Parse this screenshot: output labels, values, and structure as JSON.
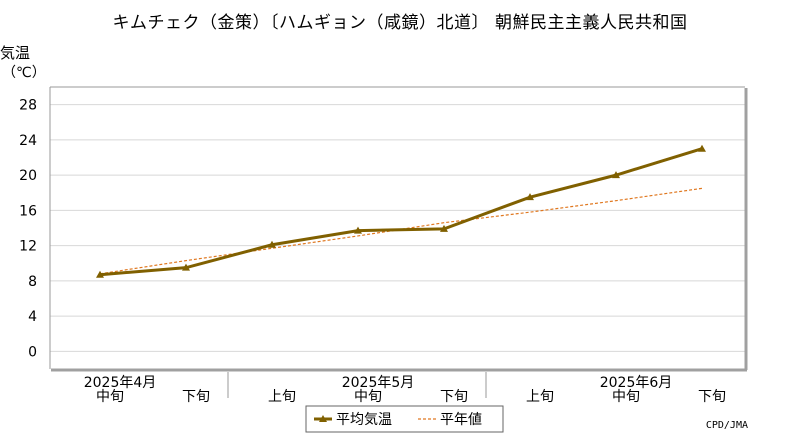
{
  "chart_data": {
    "type": "line",
    "title": "キムチェク（金策）〔ハムギョン（咸鏡）北道〕 朝鮮民主主義人民共和国",
    "ylabel": [
      "気温",
      "（℃）"
    ],
    "ylim": [
      -2,
      30
    ],
    "yticks": [
      0,
      4,
      8,
      12,
      16,
      20,
      24,
      28
    ],
    "x_ticks": [
      {
        "period": "中旬",
        "month": "2025年4月"
      },
      {
        "period": "下旬",
        "month": ""
      },
      {
        "period": "上旬",
        "month": ""
      },
      {
        "period": "中旬",
        "month": "2025年5月"
      },
      {
        "period": "下旬",
        "month": ""
      },
      {
        "period": "上旬",
        "month": ""
      },
      {
        "period": "中旬",
        "month": "2025年6月"
      },
      {
        "period": "下旬",
        "month": ""
      }
    ],
    "series": [
      {
        "name": "平均気温",
        "values": [
          8.7,
          9.5,
          12.1,
          13.7,
          13.9,
          17.5,
          20.0,
          23.0
        ],
        "color": "#806000",
        "style": "solid-triangle-markers"
      },
      {
        "name": "平年値",
        "values": [
          8.8,
          10.3,
          11.7,
          13.1,
          14.6,
          15.8,
          17.1,
          18.5
        ],
        "color": "#e07820",
        "style": "dashed"
      }
    ],
    "grid": true,
    "legend_position": "bottom-center"
  },
  "credit": "CPD/JMA"
}
